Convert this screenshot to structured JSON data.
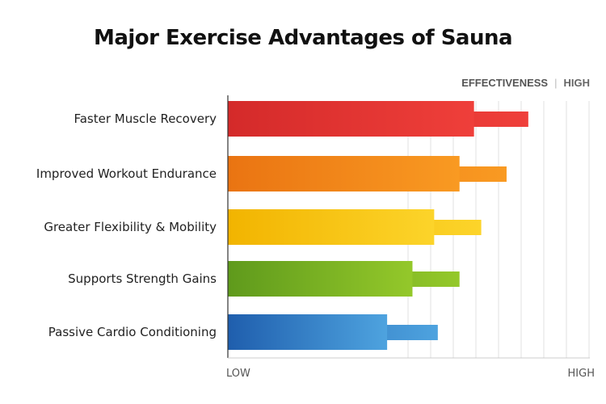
{
  "chart_data": {
    "type": "bar",
    "orientation": "horizontal",
    "title": "Major Exercise Advantages of Sauna",
    "legend": {
      "label": "EFFECTIVENESS",
      "high_label": "HIGH",
      "placement": "top-right"
    },
    "x_axis": {
      "low_label": "LOW",
      "high_label": "HIGH",
      "range": [
        0,
        100
      ]
    },
    "grid": true,
    "categories": [
      "Faster Muscle Recovery",
      "Improved Workout Endurance",
      "Greater Flexibility & Mobility",
      "Supports Strength Gains",
      "Passive Cardio Conditioning"
    ],
    "values": [
      68,
      64,
      57,
      51,
      44
    ],
    "extended_values": [
      83,
      77,
      70,
      64,
      58
    ],
    "colors": [
      [
        "#d42a2a",
        "#ef3f3a"
      ],
      [
        "#ea7412",
        "#f99a22"
      ],
      [
        "#f2b400",
        "#fcd42a"
      ],
      [
        "#5f9a1c",
        "#94c82a"
      ],
      [
        "#1f5ead",
        "#4ea3df"
      ]
    ]
  }
}
